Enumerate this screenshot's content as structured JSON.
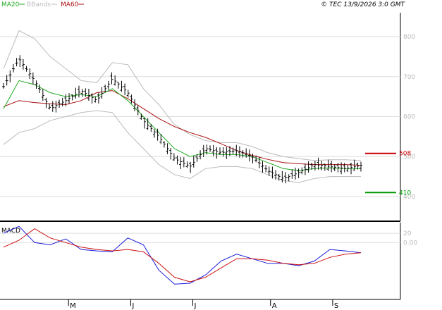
{
  "header": {
    "legend": [
      {
        "label": "MA20",
        "color": "#22aa22"
      },
      {
        "label": "BBands",
        "color": "#bbbbbb"
      },
      {
        "label": "MA60",
        "color": "#aa1111"
      }
    ],
    "copyright": "© TEC 13/9/2026 3:0 GMT"
  },
  "colors": {
    "price": "#000000",
    "ma20": "#22aa22",
    "ma60": "#aa1111",
    "bbands": "#bbbbbb",
    "macd": "#1a1adc",
    "signal": "#cc1111",
    "resistance": "#cc0000",
    "support": "#009900",
    "grid": "#dddddd"
  },
  "chart_data": [
    {
      "type": "line",
      "title": "",
      "ylim": [
        340,
        860
      ],
      "yticks": [
        400,
        500,
        600,
        700,
        800
      ],
      "ytick_labels": [
        "400",
        "500",
        "600",
        "700",
        "800"
      ],
      "x": [
        "",
        "",
        "",
        "",
        "",
        "",
        "",
        "",
        "",
        "",
        "",
        "",
        "",
        "",
        "",
        "",
        "",
        "",
        "",
        "",
        "",
        "",
        "",
        ""
      ],
      "xtick_labels": [
        {
          "i": 4,
          "label": "M"
        },
        {
          "i": 8,
          "label": "J"
        },
        {
          "i": 12,
          "label": "J"
        },
        {
          "i": 17,
          "label": "A"
        },
        {
          "i": 21,
          "label": "S"
        }
      ],
      "series": [
        {
          "name": "",
          "key": "price",
          "values": [
            675,
            745,
            690,
            620,
            640,
            665,
            640,
            695,
            660,
            590,
            550,
            495,
            475,
            520,
            510,
            515,
            500,
            465,
            445,
            460,
            480,
            475,
            470,
            478
          ]
        },
        {
          "name": "MA20",
          "key": "ma20",
          "values": [
            620,
            690,
            680,
            660,
            650,
            655,
            650,
            670,
            640,
            600,
            560,
            520,
            500,
            510,
            505,
            505,
            500,
            485,
            470,
            465,
            470,
            472,
            470,
            470
          ]
        },
        {
          "name": "MA60",
          "key": "ma60",
          "values": [
            625,
            640,
            635,
            632,
            630,
            640,
            660,
            665,
            645,
            620,
            595,
            575,
            560,
            548,
            532,
            515,
            503,
            493,
            485,
            482,
            480,
            480,
            480,
            478
          ]
        },
        {
          "name": "BBands",
          "key": "bb_upper",
          "values": [
            720,
            815,
            795,
            750,
            720,
            690,
            685,
            735,
            730,
            670,
            630,
            580,
            555,
            540,
            535,
            535,
            525,
            510,
            500,
            495,
            490,
            492,
            492,
            490
          ]
        },
        {
          "name": "BBands",
          "key": "bb_lower",
          "values": [
            530,
            560,
            570,
            590,
            600,
            610,
            615,
            610,
            560,
            520,
            480,
            455,
            445,
            470,
            475,
            475,
            470,
            455,
            440,
            435,
            445,
            450,
            450,
            450
          ]
        }
      ],
      "levels": [
        {
          "label": "508",
          "value": 508,
          "key": "resistance"
        },
        {
          "label": "410",
          "value": 410,
          "key": "support"
        }
      ]
    },
    {
      "type": "line",
      "title": "MACD",
      "ylim": [
        -120,
        40
      ],
      "yticks": [
        20,
        0
      ],
      "ytick_labels": [
        "20",
        "0.00"
      ],
      "series": [
        {
          "name": "",
          "key": "macd",
          "values": [
            20,
            35,
            0,
            -5,
            8,
            -15,
            -18,
            -20,
            10,
            -5,
            -60,
            -90,
            -88,
            -70,
            -40,
            -25,
            -35,
            -45,
            -45,
            -50,
            -40,
            -15,
            -18,
            -22
          ]
        },
        {
          "name": "",
          "key": "signal",
          "values": [
            -10,
            5,
            30,
            10,
            0,
            -10,
            -15,
            -18,
            -15,
            -20,
            -45,
            -75,
            -85,
            -75,
            -55,
            -35,
            -35,
            -38,
            -45,
            -48,
            -45,
            -32,
            -25,
            -22
          ]
        }
      ]
    }
  ]
}
